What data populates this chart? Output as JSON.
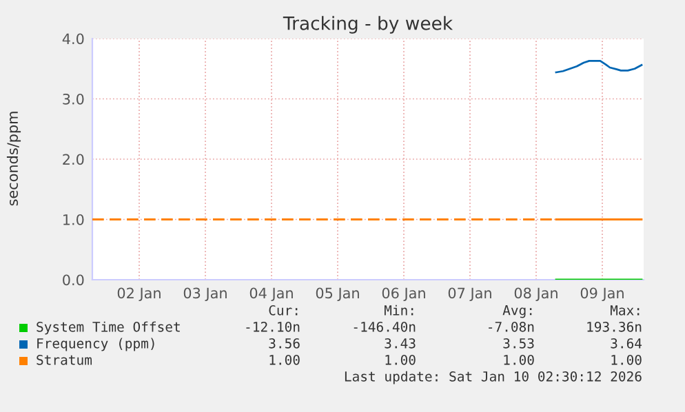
{
  "chart_data": {
    "type": "line",
    "title": "Tracking - by week",
    "ylabel": "seconds/ppm",
    "xlim": [
      "2026-01-01T19:00",
      "2026-01-10T03:00"
    ],
    "xticks": [
      {
        "value": "2026-01-02T12:00",
        "label": "02 Jan"
      },
      {
        "value": "2026-01-03T12:00",
        "label": "03 Jan"
      },
      {
        "value": "2026-01-04T12:00",
        "label": "04 Jan"
      },
      {
        "value": "2026-01-05T12:00",
        "label": "05 Jan"
      },
      {
        "value": "2026-01-06T12:00",
        "label": "06 Jan"
      },
      {
        "value": "2026-01-07T12:00",
        "label": "07 Jan"
      },
      {
        "value": "2026-01-08T12:00",
        "label": "08 Jan"
      },
      {
        "value": "2026-01-09T12:00",
        "label": "09 Jan"
      }
    ],
    "ylim": [
      0,
      4.0
    ],
    "yticks": [
      {
        "value": 0,
        "label": "0.0"
      },
      {
        "value": 1,
        "label": "1.0"
      },
      {
        "value": 2,
        "label": "2.0"
      },
      {
        "value": 3,
        "label": "3.0"
      },
      {
        "value": 4,
        "label": "4.0"
      }
    ],
    "grid": true,
    "legend": "bottom",
    "series": [
      {
        "name": "System Time Offset",
        "color": "#00cc00",
        "x": [
          "2026-01-08T19:15",
          "2026-01-10T02:15"
        ],
        "values": [
          0,
          0
        ]
      },
      {
        "name": "Frequency (ppm)",
        "color": "#0066b3",
        "x": [
          "2026-01-08T19:15",
          "2026-01-08T21:45",
          "2026-01-09T00:15",
          "2026-01-09T02:45",
          "2026-01-09T05:15",
          "2026-01-09T07:15",
          "2026-01-09T11:15",
          "2026-01-09T13:15",
          "2026-01-09T14:45",
          "2026-01-09T17:15",
          "2026-01-09T18:45",
          "2026-01-09T21:15",
          "2026-01-09T23:45",
          "2026-01-10T02:15"
        ],
        "values": [
          3.44,
          3.46,
          3.5,
          3.54,
          3.6,
          3.63,
          3.63,
          3.57,
          3.52,
          3.49,
          3.47,
          3.47,
          3.5,
          3.56
        ]
      },
      {
        "name": "Stratum",
        "color": "#ff8000",
        "x": [
          "2026-01-08T19:15",
          "2026-01-10T02:15"
        ],
        "values": [
          1,
          1
        ]
      },
      {
        "color": "#ff8000",
        "line_style": "dashed",
        "x": [
          "2026-01-01T19:00",
          "2026-01-08T19:15"
        ],
        "values": [
          1,
          1
        ]
      }
    ],
    "annotations": [
      "Cur:",
      "Min:",
      "Avg:",
      "Max:",
      "-12.10n",
      "-146.40n",
      "-7.08n",
      "193.36n",
      "3.56",
      "3.43",
      "3.53",
      "3.64",
      "1.00",
      "1.00",
      "1.00",
      "1.00",
      "Last update: Sat Jan 10 02:30:12 2026"
    ]
  }
}
